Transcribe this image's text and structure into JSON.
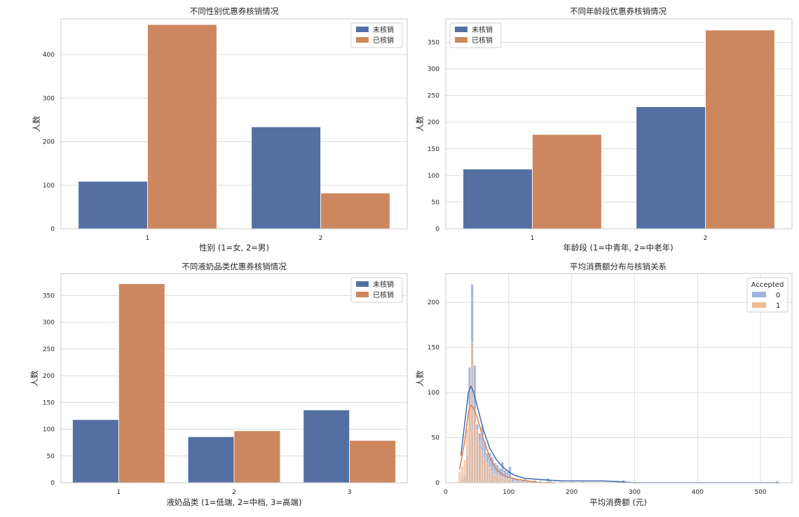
{
  "colors": {
    "not_redeemed": "#5470a3",
    "redeemed": "#cd875e",
    "hist0": "#9fb4d8",
    "hist1": "#f0bc98",
    "kde0": "#4c72b0",
    "kde1": "#dd8452",
    "grid": "#dcdcdc",
    "frame": "#c8c8c8"
  },
  "chart_data": [
    {
      "type": "bar",
      "title": "不同性别优惠券核销情况",
      "xlabel": "性别 (1=女, 2=男)",
      "ylabel": "人数",
      "categories": [
        "1",
        "2"
      ],
      "ylim": [
        0,
        482
      ],
      "yticks": [
        0,
        100,
        200,
        300,
        400
      ],
      "legend": {
        "position": "top-right",
        "entries": [
          "未核销",
          "已核销"
        ]
      },
      "series": [
        {
          "name": "未核销",
          "values": [
            109,
            234
          ]
        },
        {
          "name": "已核销",
          "values": [
            469,
            82
          ]
        }
      ]
    },
    {
      "type": "bar",
      "title": "不同年龄段优惠券核销情况",
      "xlabel": "年龄段 (1=中青年, 2=中老年)",
      "ylabel": "人数",
      "categories": [
        "1",
        "2"
      ],
      "ylim": [
        0,
        394
      ],
      "yticks": [
        0,
        50,
        100,
        150,
        200,
        250,
        300,
        350
      ],
      "legend": {
        "position": "top-left",
        "entries": [
          "未核销",
          "已核销"
        ]
      },
      "series": [
        {
          "name": "未核销",
          "values": [
            112,
            229
          ]
        },
        {
          "name": "已核销",
          "values": [
            177,
            373
          ]
        }
      ]
    },
    {
      "type": "bar",
      "title": "不同液奶品类优惠券核销情况",
      "xlabel": "液奶品类 (1=低端, 2=中档, 3=高端)",
      "ylabel": "人数",
      "categories": [
        "1",
        "2",
        "3"
      ],
      "ylim": [
        0,
        391
      ],
      "yticks": [
        0,
        50,
        100,
        150,
        200,
        250,
        300,
        350
      ],
      "legend": {
        "position": "top-right",
        "entries": [
          "未核销",
          "已核销"
        ]
      },
      "series": [
        {
          "name": "未核销",
          "values": [
            118,
            86,
            136
          ]
        },
        {
          "name": "已核销",
          "values": [
            372,
            97,
            79
          ]
        }
      ]
    },
    {
      "type": "histogram",
      "title": "平均消费额分布与核销关系",
      "xlabel": "平均消费额 (元)",
      "ylabel": "人数",
      "xlim": [
        0,
        550
      ],
      "ylim": [
        0,
        232
      ],
      "xticks": [
        0,
        100,
        200,
        300,
        400,
        500
      ],
      "yticks": [
        0,
        50,
        100,
        150,
        200
      ],
      "legend": {
        "position": "top-right",
        "title": "Accepted",
        "entries": [
          "0",
          "1"
        ]
      },
      "series": [
        {
          "name": "0",
          "bins": [
            [
              24,
              4
            ],
            [
              28,
              8
            ],
            [
              32,
              30
            ],
            [
              36,
              128
            ],
            [
              40,
              220
            ],
            [
              44,
              130
            ],
            [
              48,
              65
            ],
            [
              52,
              55
            ],
            [
              56,
              63
            ],
            [
              60,
              45
            ],
            [
              64,
              33
            ],
            [
              68,
              33
            ],
            [
              72,
              28
            ],
            [
              76,
              22
            ],
            [
              80,
              20
            ],
            [
              84,
              16
            ],
            [
              88,
              23
            ],
            [
              92,
              14
            ],
            [
              96,
              12
            ],
            [
              100,
              18
            ],
            [
              104,
              6
            ],
            [
              108,
              5
            ],
            [
              112,
              4
            ],
            [
              116,
              3
            ],
            [
              120,
              3
            ],
            [
              124,
              4
            ],
            [
              128,
              2
            ],
            [
              136,
              2
            ],
            [
              140,
              3
            ],
            [
              148,
              2
            ],
            [
              160,
              5
            ],
            [
              164,
              3
            ],
            [
              180,
              1
            ],
            [
              200,
              1
            ],
            [
              216,
              1
            ],
            [
              280,
              3
            ],
            [
              524,
              2
            ]
          ],
          "kde": [
            [
              24,
              30
            ],
            [
              30,
              65
            ],
            [
              36,
              100
            ],
            [
              40,
              107
            ],
            [
              44,
              101
            ],
            [
              50,
              85
            ],
            [
              60,
              58
            ],
            [
              70,
              38
            ],
            [
              80,
              26
            ],
            [
              90,
              18
            ],
            [
              100,
              12
            ],
            [
              110,
              8
            ],
            [
              125,
              5
            ],
            [
              140,
              4
            ],
            [
              160,
              3
            ],
            [
              185,
              2
            ],
            [
              220,
              2
            ],
            [
              250,
              2
            ],
            [
              280,
              1
            ],
            [
              300,
              0
            ],
            [
              530,
              0
            ]
          ]
        },
        {
          "name": "1",
          "bins": [
            [
              20,
              12
            ],
            [
              24,
              18
            ],
            [
              28,
              25
            ],
            [
              32,
              60
            ],
            [
              36,
              85
            ],
            [
              40,
              155
            ],
            [
              44,
              80
            ],
            [
              48,
              58
            ],
            [
              52,
              45
            ],
            [
              56,
              35
            ],
            [
              60,
              28
            ],
            [
              64,
              22
            ],
            [
              68,
              17
            ],
            [
              72,
              13
            ],
            [
              76,
              10
            ],
            [
              80,
              9
            ],
            [
              84,
              7
            ],
            [
              88,
              6
            ],
            [
              92,
              5
            ],
            [
              96,
              4
            ],
            [
              100,
              4
            ],
            [
              108,
              2
            ],
            [
              116,
              2
            ],
            [
              124,
              1
            ],
            [
              140,
              2
            ],
            [
              160,
              1
            ]
          ],
          "kde": [
            [
              22,
              15
            ],
            [
              30,
              45
            ],
            [
              36,
              78
            ],
            [
              40,
              86
            ],
            [
              44,
              83
            ],
            [
              50,
              72
            ],
            [
              60,
              48
            ],
            [
              70,
              28
            ],
            [
              80,
              15
            ],
            [
              90,
              9
            ],
            [
              100,
              6
            ],
            [
              110,
              4
            ],
            [
              120,
              3
            ],
            [
              130,
              2
            ],
            [
              140,
              1
            ],
            [
              150,
              0
            ],
            [
              175,
              0
            ]
          ]
        }
      ]
    }
  ]
}
